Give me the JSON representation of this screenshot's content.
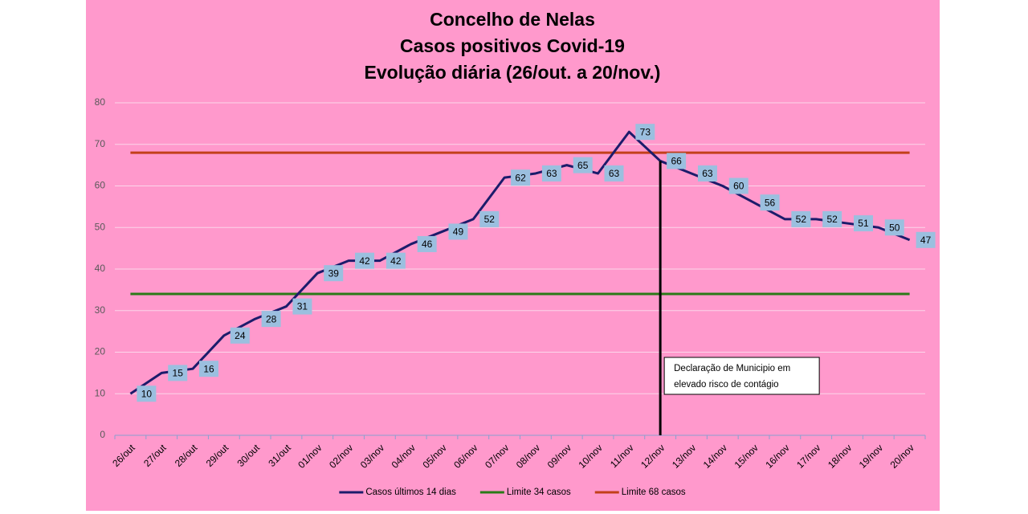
{
  "chart_data": {
    "type": "line",
    "title": [
      "Concelho de Nelas",
      "Casos positivos Covid-19",
      "Evolução diária (26/out. a 20/nov.)"
    ],
    "categories": [
      "26/out",
      "27/out",
      "28/out",
      "29/out",
      "30/out",
      "31/out",
      "01/nov",
      "02/nov",
      "03/nov",
      "04/nov",
      "05/nov",
      "06/nov",
      "07/nov",
      "08/nov",
      "09/nov",
      "10/nov",
      "11/nov",
      "12/nov",
      "13/nov",
      "14/nov",
      "15/nov",
      "16/nov",
      "17/nov",
      "18/nov",
      "19/nov",
      "20/nov"
    ],
    "series": [
      {
        "name": "Casos últimos 14 dias",
        "color": "#1c1c6b",
        "data_labels": true,
        "values": [
          10,
          15,
          16,
          24,
          28,
          31,
          39,
          42,
          42,
          46,
          49,
          52,
          62,
          63,
          65,
          63,
          73,
          66,
          63,
          60,
          56,
          52,
          52,
          51,
          50,
          47
        ]
      },
      {
        "name": "Limite 34 casos",
        "color": "#2a7a18",
        "data_labels": false,
        "values": [
          34,
          34,
          34,
          34,
          34,
          34,
          34,
          34,
          34,
          34,
          34,
          34,
          34,
          34,
          34,
          34,
          34,
          34,
          34,
          34,
          34,
          34,
          34,
          34,
          34,
          34
        ]
      },
      {
        "name": "Limite 68 casos",
        "color": "#c2401a",
        "data_labels": false,
        "values": [
          68,
          68,
          68,
          68,
          68,
          68,
          68,
          68,
          68,
          68,
          68,
          68,
          68,
          68,
          68,
          68,
          68,
          68,
          68,
          68,
          68,
          68,
          68,
          68,
          68,
          68
        ]
      }
    ],
    "ylim": [
      0,
      80
    ],
    "yticks": [
      0,
      10,
      20,
      30,
      40,
      50,
      60,
      70,
      80
    ],
    "grid": true,
    "annotation": {
      "lines": [
        "Declaração de Municipio em",
        "elevado risco de contágio"
      ],
      "category": "12/nov"
    },
    "legend": "bottom"
  }
}
